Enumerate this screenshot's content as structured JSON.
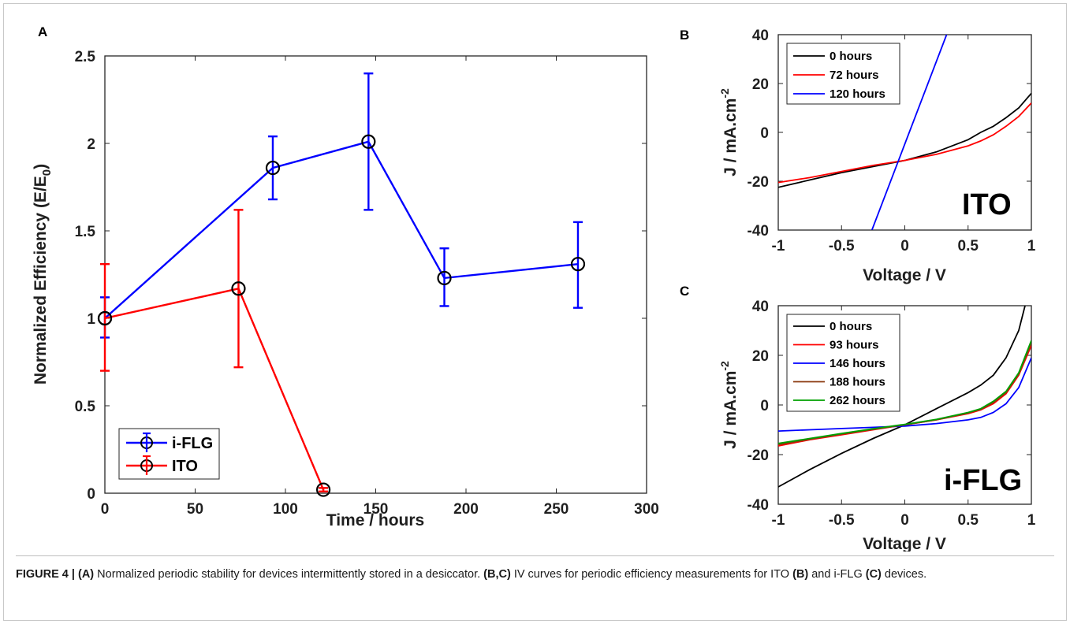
{
  "figure": {
    "caption": {
      "label": "FIGURE 4 | ",
      "segments": [
        {
          "bold": true,
          "text": "(A)"
        },
        {
          "bold": false,
          "text": " Normalized periodic stability for devices intermittently stored in a desiccator. "
        },
        {
          "bold": true,
          "text": "(B,C)"
        },
        {
          "bold": false,
          "text": " IV curves for periodic efficiency measurements for ITO "
        },
        {
          "bold": true,
          "text": "(B)"
        },
        {
          "bold": false,
          "text": " and i-FLG "
        },
        {
          "bold": true,
          "text": "(C)"
        },
        {
          "bold": false,
          "text": " devices."
        }
      ]
    }
  },
  "chart_data": [
    {
      "panel": "A",
      "type": "line",
      "xlabel": "Time / hours",
      "ylabel_main": "Normalized Efficiency (E/E",
      "ylabel_sub": "0",
      "ylabel_end": ")",
      "xlim": [
        0,
        300
      ],
      "ylim": [
        0,
        2.5
      ],
      "xticks": [
        0,
        50,
        100,
        150,
        200,
        250,
        300
      ],
      "yticks": [
        0,
        0.5,
        1,
        1.5,
        2,
        2.5
      ],
      "ytick_labels": [
        "0",
        "0.5",
        "1",
        "1.5",
        "2",
        "2.5"
      ],
      "legend_position": "bottom-left",
      "series": [
        {
          "name": "i-FLG",
          "color": "#0000ff",
          "x": [
            0,
            93,
            146,
            188,
            262
          ],
          "y": [
            1.0,
            1.86,
            2.01,
            1.23,
            1.31
          ],
          "err_low": [
            0.89,
            1.68,
            1.62,
            1.07,
            1.06
          ],
          "err_high": [
            1.12,
            2.04,
            2.4,
            1.4,
            1.55
          ]
        },
        {
          "name": "ITO",
          "color": "#ff0000",
          "x": [
            0,
            74,
            121
          ],
          "y": [
            1.0,
            1.17,
            0.02
          ],
          "err_low": [
            0.7,
            0.72,
            0.01
          ],
          "err_high": [
            1.31,
            1.62,
            0.03
          ]
        }
      ]
    },
    {
      "panel": "B",
      "type": "line",
      "xlabel": "Voltage / V",
      "ylabel": "J / mA.cm",
      "ylabel_sup": "-2",
      "xlim": [
        -1,
        1
      ],
      "ylim": [
        -40,
        40
      ],
      "xticks": [
        -1,
        -0.5,
        0,
        0.5,
        1
      ],
      "xtick_labels": [
        "-1",
        "-0.5",
        "0",
        "0.5",
        "1"
      ],
      "yticks": [
        -40,
        -20,
        0,
        20,
        40
      ],
      "annotation": "ITO",
      "legend_position": "top-left",
      "series": [
        {
          "name": "0 hours",
          "color": "#000000",
          "x": [
            -1,
            -0.75,
            -0.5,
            -0.25,
            0,
            0.25,
            0.5,
            0.6,
            0.7,
            0.8,
            0.9,
            1
          ],
          "y": [
            -22.5,
            -19.5,
            -16.5,
            -14,
            -11.5,
            -8,
            -3,
            0,
            2.5,
            6,
            10,
            16
          ]
        },
        {
          "name": "72 hours",
          "color": "#ff0000",
          "x": [
            -1,
            -0.75,
            -0.5,
            -0.25,
            0,
            0.25,
            0.5,
            0.6,
            0.7,
            0.8,
            0.9,
            1
          ],
          "y": [
            -20.5,
            -18.5,
            -16,
            -13.5,
            -11.5,
            -9,
            -5.5,
            -3.5,
            -1,
            2.5,
            6.5,
            12
          ]
        },
        {
          "name": "120 hours",
          "color": "#0000ff",
          "x": [
            -0.26,
            0.33
          ],
          "y": [
            -40,
            40
          ]
        }
      ]
    },
    {
      "panel": "C",
      "type": "line",
      "xlabel": "Voltage / V",
      "ylabel": "J / mA.cm",
      "ylabel_sup": "-2",
      "xlim": [
        -1,
        1
      ],
      "ylim": [
        -40,
        40
      ],
      "xticks": [
        -1,
        -0.5,
        0,
        0.5,
        1
      ],
      "xtick_labels": [
        "-1",
        "-0.5",
        "0",
        "0.5",
        "1"
      ],
      "yticks": [
        -40,
        -20,
        0,
        20,
        40
      ],
      "annotation": "i-FLG",
      "legend_position": "top-left",
      "series": [
        {
          "name": "0 hours",
          "color": "#000000",
          "x": [
            -1,
            -0.75,
            -0.5,
            -0.25,
            0,
            0.25,
            0.5,
            0.6,
            0.7,
            0.8,
            0.9,
            0.95
          ],
          "y": [
            -33,
            -26,
            -19.5,
            -13.5,
            -8,
            -1.5,
            5,
            8,
            12,
            19,
            30,
            40
          ]
        },
        {
          "name": "93 hours",
          "color": "#ff0000",
          "x": [
            -1,
            -0.75,
            -0.5,
            -0.25,
            0,
            0.25,
            0.5,
            0.6,
            0.7,
            0.8,
            0.9,
            1
          ],
          "y": [
            -16.5,
            -14,
            -12,
            -10,
            -8,
            -6,
            -3.5,
            -2,
            0.5,
            4.5,
            12,
            24
          ]
        },
        {
          "name": "146 hours",
          "color": "#0000ff",
          "x": [
            -1,
            -0.75,
            -0.5,
            -0.25,
            0,
            0.25,
            0.5,
            0.6,
            0.7,
            0.8,
            0.9,
            1
          ],
          "y": [
            -10.5,
            -10,
            -9.5,
            -9,
            -8.5,
            -7.5,
            -6,
            -5,
            -3,
            0.5,
            7,
            19
          ]
        },
        {
          "name": "188 hours",
          "color": "#8b3a0f",
          "x": [
            -1,
            -0.75,
            -0.5,
            -0.25,
            0,
            0.25,
            0.5,
            0.6,
            0.7,
            0.8,
            0.9,
            1
          ],
          "y": [
            -16,
            -13.8,
            -11.7,
            -9.8,
            -8,
            -6,
            -3.2,
            -1.7,
            1,
            5,
            12.5,
            25
          ]
        },
        {
          "name": "262 hours",
          "color": "#00a000",
          "x": [
            -1,
            -0.75,
            -0.5,
            -0.25,
            0,
            0.25,
            0.5,
            0.6,
            0.7,
            0.8,
            0.9,
            1
          ],
          "y": [
            -15.5,
            -13.5,
            -11.5,
            -9.6,
            -7.8,
            -5.8,
            -3,
            -1.5,
            1.5,
            5.5,
            13,
            26
          ]
        }
      ]
    }
  ]
}
